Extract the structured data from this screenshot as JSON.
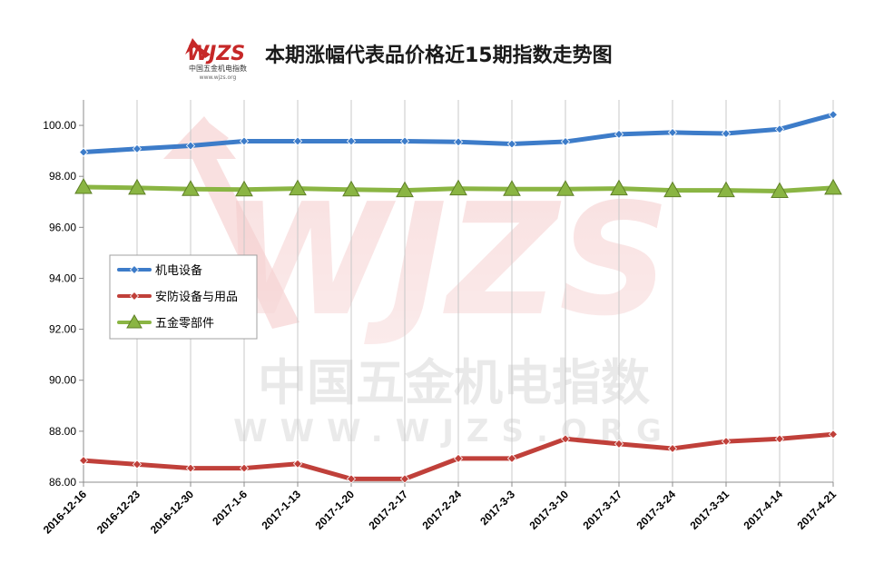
{
  "title": "本期涨幅代表品价格近15期指数走势图",
  "logo": {
    "text": "WJZS",
    "subtext": "中国五金机电指数",
    "url": "www.wjzs.org"
  },
  "watermark": {
    "text": "WJZS",
    "cn": "中国五金机电指数",
    "url": "WWW.WJZS.ORG"
  },
  "chart_data": {
    "type": "line",
    "title": "本期涨幅代表品价格近15期指数走势图",
    "xlabel": "",
    "ylabel": "",
    "ylim": [
      86,
      101
    ],
    "yticks": [
      "86.00",
      "88.00",
      "90.00",
      "92.00",
      "94.00",
      "96.00",
      "98.00",
      "100.00"
    ],
    "grid": {
      "vertical": true,
      "horizontal": false
    },
    "legend": "left-middle",
    "categories": [
      "2016-12-16",
      "2016-12-23",
      "2016-12-30",
      "2017-1-6",
      "2017-1-13",
      "2017-1-20",
      "2017-2-17",
      "2017-2-24",
      "2017-3-3",
      "2017-3-10",
      "2017-3-17",
      "2017-3-24",
      "2017-3-31",
      "2017-4-14",
      "2017-4-21"
    ],
    "series": [
      {
        "name": "机电设备",
        "color": "#3d7cc9",
        "marker": "diamond",
        "values": [
          98.95,
          99.08,
          99.2,
          99.38,
          99.38,
          99.38,
          99.38,
          99.35,
          99.27,
          99.36,
          99.65,
          99.72,
          99.68,
          99.85,
          100.42
        ]
      },
      {
        "name": "安防设备与用品",
        "color": "#c0403a",
        "marker": "diamond",
        "values": [
          86.85,
          86.7,
          86.55,
          86.55,
          86.72,
          86.13,
          86.13,
          86.93,
          86.93,
          87.7,
          87.5,
          87.32,
          87.6,
          87.7,
          87.88
        ]
      },
      {
        "name": "五金零部件",
        "color": "#8ab543",
        "marker": "triangle",
        "values": [
          97.58,
          97.55,
          97.5,
          97.48,
          97.52,
          97.48,
          97.45,
          97.52,
          97.5,
          97.5,
          97.52,
          97.45,
          97.45,
          97.42,
          97.55
        ]
      }
    ]
  }
}
